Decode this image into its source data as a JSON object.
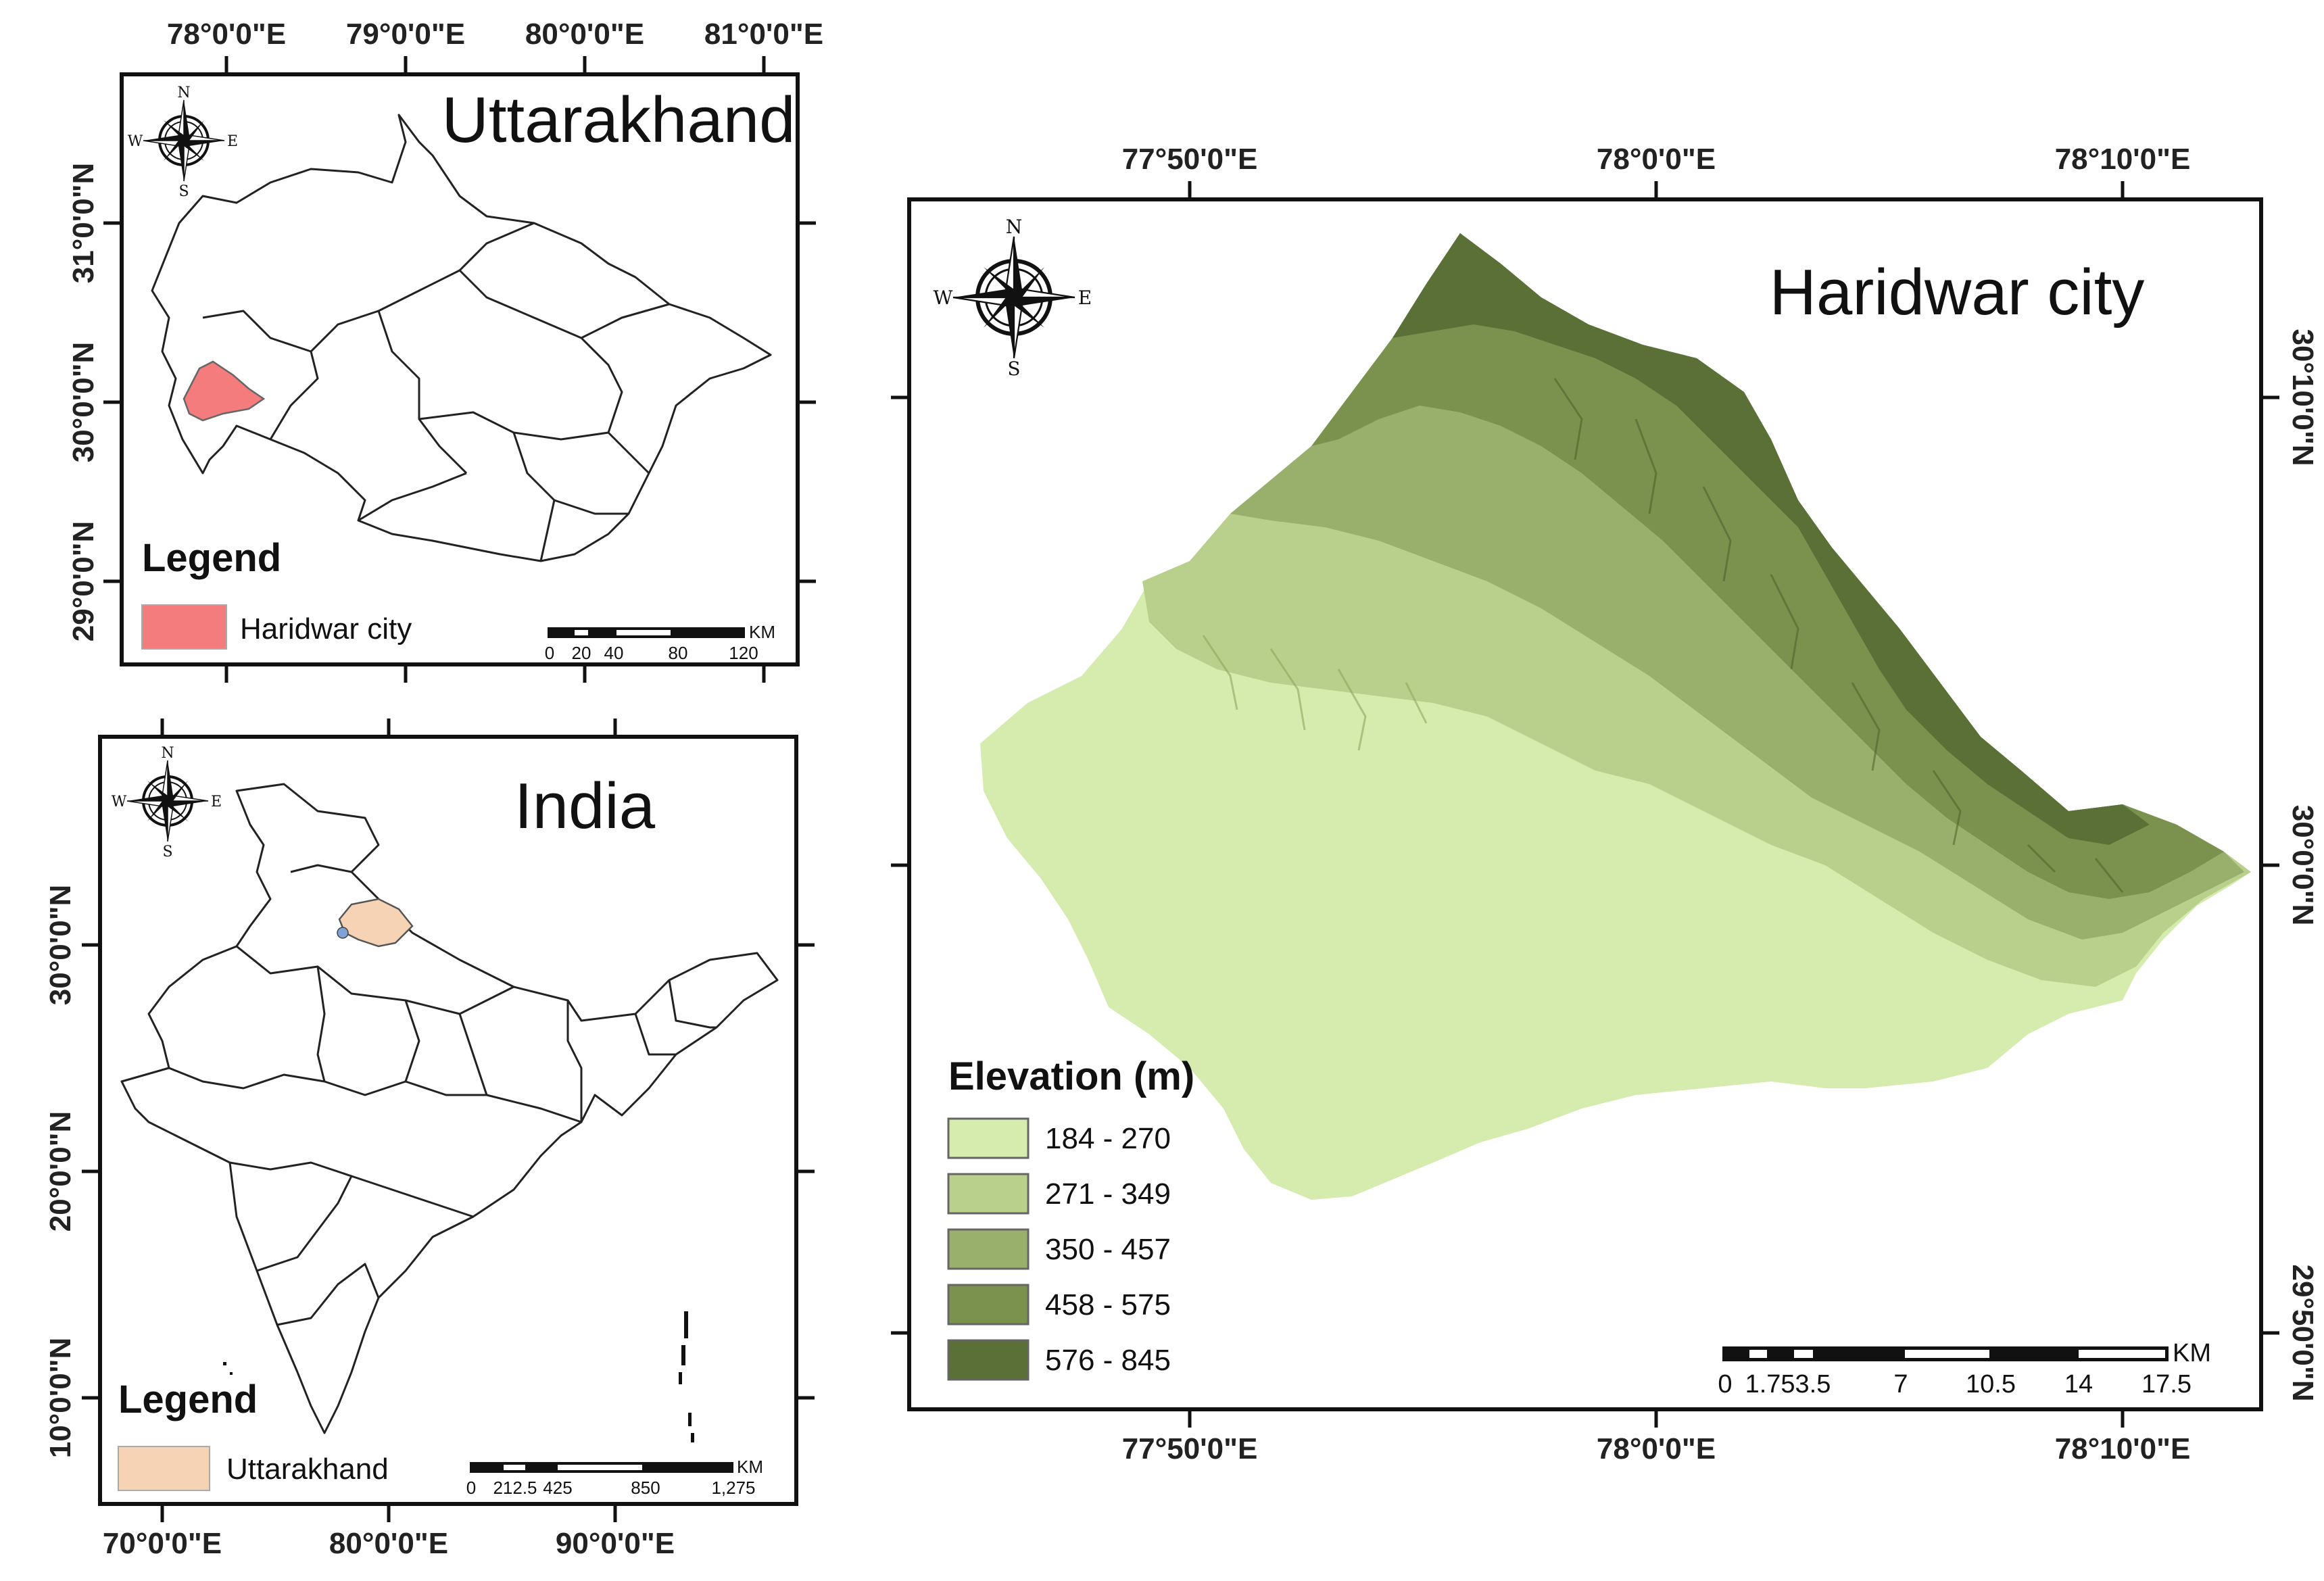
{
  "uttarakhand_map": {
    "title": "Uttarakhand",
    "top_ticks": [
      "78°0'0\"E",
      "79°0'0\"E",
      "80°0'0\"E",
      "81°0'0\"E"
    ],
    "left_ticks": [
      "31°0'0\"N",
      "30°0'0\"N",
      "29°0'0\"N"
    ],
    "legend": {
      "heading": "Legend",
      "item": "Haridwar city",
      "item_color": "#f47c7c"
    },
    "scale": {
      "unit": "KM",
      "labels": [
        "0",
        "20",
        "40",
        "80",
        "120"
      ]
    },
    "compass": {
      "n": "N",
      "s": "S",
      "e": "E",
      "w": "W"
    }
  },
  "india_map": {
    "title": "India",
    "bottom_ticks": [
      "70°0'0\"E",
      "80°0'0\"E",
      "90°0'0\"E"
    ],
    "left_ticks": [
      "30°0'0\"N",
      "20°0'0\"N",
      "10°0'0\"N"
    ],
    "legend": {
      "heading": "Legend",
      "item": "Uttarakhand",
      "item_color": "#f7d3b5"
    },
    "scale": {
      "unit": "KM",
      "labels": [
        "0",
        "212.5",
        "425",
        "850",
        "1,275"
      ]
    },
    "compass": {
      "n": "N",
      "s": "S",
      "e": "E",
      "w": "W"
    }
  },
  "haridwar_map": {
    "title": "Haridwar city",
    "top_ticks": [
      "77°50'0\"E",
      "78°0'0\"E",
      "78°10'0\"E"
    ],
    "bottom_ticks": [
      "77°50'0\"E",
      "78°0'0\"E",
      "78°10'0\"E"
    ],
    "right_ticks": [
      "30°10'0\"N",
      "30°0'0\"N",
      "29°50'0\"N"
    ],
    "legend": {
      "heading": "Elevation (m)",
      "classes": [
        {
          "label": "184 - 270",
          "color": "#d6ebae"
        },
        {
          "label": "271 - 349",
          "color": "#b8d08c"
        },
        {
          "label": "350 - 457",
          "color": "#98b06c"
        },
        {
          "label": "458 - 575",
          "color": "#7a924e"
        },
        {
          "label": "576 - 845",
          "color": "#5a7036"
        }
      ]
    },
    "scale": {
      "unit": "KM",
      "labels": [
        "0",
        "1.753.5",
        "7",
        "10.5",
        "14",
        "17.5"
      ]
    },
    "compass": {
      "n": "N",
      "s": "S",
      "e": "E",
      "w": "W"
    }
  }
}
